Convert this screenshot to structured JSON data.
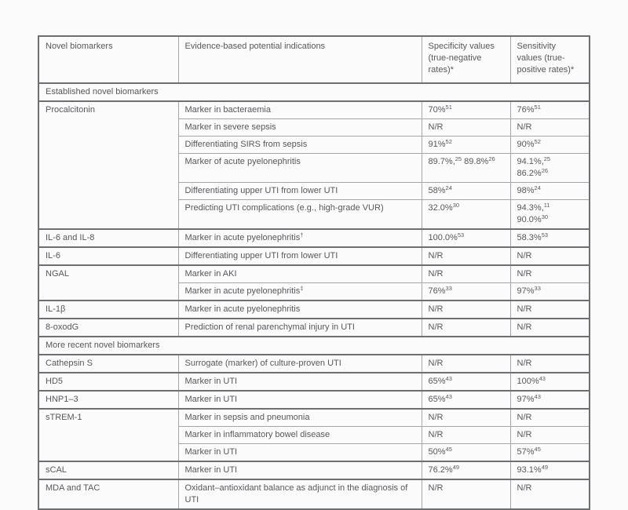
{
  "table": {
    "h": [
      "Novel biomarkers",
      "Evidence-based potential indications",
      "Specificity values (true-negative rates)*",
      "Sensitivity values (true-positive rates)*"
    ],
    "sec1": "Established novel biomarkers",
    "sec2": "More recent novel biomarkers",
    "g": [
      {
        "name": "Procalcitonin",
        "rows": [
          {
            "ind": [
              {
                "t": "Marker in bacteraemia"
              }
            ],
            "spec": [
              {
                "t": "70%",
                "s": "51"
              }
            ],
            "sens": [
              {
                "t": "76%",
                "s": "51"
              }
            ]
          },
          {
            "ind": [
              {
                "t": "Marker in severe sepsis"
              }
            ],
            "spec": [
              {
                "t": "N/R"
              }
            ],
            "sens": [
              {
                "t": "N/R"
              }
            ]
          },
          {
            "ind": [
              {
                "t": "Differentiating SIRS from sepsis"
              }
            ],
            "spec": [
              {
                "t": "91%",
                "s": "52"
              }
            ],
            "sens": [
              {
                "t": "90%",
                "s": "52"
              }
            ]
          },
          {
            "ind": [
              {
                "t": "Marker of acute pyelonephritis"
              }
            ],
            "spec": [
              {
                "t": "89.7%,",
                "s": "25"
              },
              {
                "t": " 89.8%",
                "s": "26"
              }
            ],
            "sens": [
              {
                "t": "94.1%,",
                "s": "25"
              },
              {
                "t": " 86.2%",
                "s": "26"
              }
            ]
          },
          {
            "ind": [
              {
                "t": "Differentiating upper UTI from lower UTI"
              }
            ],
            "spec": [
              {
                "t": "58%",
                "s": "24"
              }
            ],
            "sens": [
              {
                "t": "98%",
                "s": "24"
              }
            ]
          },
          {
            "ind": [
              {
                "t": "Predicting UTI complications (e.g., high-grade VUR)"
              }
            ],
            "spec": [
              {
                "t": "32.0%",
                "s": "30"
              }
            ],
            "sens": [
              {
                "t": "94.3%,",
                "s": "11"
              },
              {
                "t": " 90.0%",
                "s": "30"
              }
            ]
          }
        ]
      },
      {
        "name": "IL-6 and IL-8",
        "rows": [
          {
            "ind": [
              {
                "t": "Marker in acute pyelonephritis",
                "s": "†"
              }
            ],
            "spec": [
              {
                "t": "100.0%",
                "s": "53"
              }
            ],
            "sens": [
              {
                "t": "58.3%",
                "s": "53"
              }
            ]
          }
        ]
      },
      {
        "name": "IL-6",
        "rows": [
          {
            "ind": [
              {
                "t": "Differentiating upper UTI from lower UTI"
              }
            ],
            "spec": [
              {
                "t": "N/R"
              }
            ],
            "sens": [
              {
                "t": "N/R"
              }
            ]
          }
        ]
      },
      {
        "name": "NGAL",
        "rows": [
          {
            "ind": [
              {
                "t": "Marker in AKI"
              }
            ],
            "spec": [
              {
                "t": "N/R"
              }
            ],
            "sens": [
              {
                "t": "N/R"
              }
            ]
          },
          {
            "ind": [
              {
                "t": "Marker in acute pyelonephritis",
                "s": "‡"
              }
            ],
            "spec": [
              {
                "t": "76%",
                "s": "33"
              }
            ],
            "sens": [
              {
                "t": "97%",
                "s": "33"
              }
            ]
          }
        ]
      },
      {
        "name": "IL-1β",
        "rows": [
          {
            "ind": [
              {
                "t": "Marker in acute pyelonephritis"
              }
            ],
            "spec": [
              {
                "t": "N/R"
              }
            ],
            "sens": [
              {
                "t": "N/R"
              }
            ]
          }
        ]
      },
      {
        "name": "8-oxodG",
        "rows": [
          {
            "ind": [
              {
                "t": "Prediction of renal parenchymal injury in UTI"
              }
            ],
            "spec": [
              {
                "t": "N/R"
              }
            ],
            "sens": [
              {
                "t": "N/R"
              }
            ]
          }
        ]
      },
      {
        "name": "Cathepsin S",
        "rows": [
          {
            "ind": [
              {
                "t": "Surrogate (marker) of culture-proven UTI"
              }
            ],
            "spec": [
              {
                "t": "N/R"
              }
            ],
            "sens": [
              {
                "t": "N/R"
              }
            ]
          }
        ]
      },
      {
        "name": "HD5",
        "rows": [
          {
            "ind": [
              {
                "t": "Marker in UTI"
              }
            ],
            "spec": [
              {
                "t": "65%",
                "s": "43"
              }
            ],
            "sens": [
              {
                "t": "100%",
                "s": "43"
              }
            ]
          }
        ]
      },
      {
        "name": "HNP1–3",
        "rows": [
          {
            "ind": [
              {
                "t": "Marker in UTI"
              }
            ],
            "spec": [
              {
                "t": "65%",
                "s": "43"
              }
            ],
            "sens": [
              {
                "t": "97%",
                "s": "43"
              }
            ]
          }
        ]
      },
      {
        "name": "sTREM-1",
        "rows": [
          {
            "ind": [
              {
                "t": "Marker in sepsis and pneumonia"
              }
            ],
            "spec": [
              {
                "t": "N/R"
              }
            ],
            "sens": [
              {
                "t": "N/R"
              }
            ]
          },
          {
            "ind": [
              {
                "t": "Marker in inflammatory bowel disease"
              }
            ],
            "spec": [
              {
                "t": "N/R"
              }
            ],
            "sens": [
              {
                "t": "N/R"
              }
            ]
          },
          {
            "ind": [
              {
                "t": "Marker in UTI"
              }
            ],
            "spec": [
              {
                "t": "50%",
                "s": "45"
              }
            ],
            "sens": [
              {
                "t": "57%",
                "s": "45"
              }
            ]
          }
        ]
      },
      {
        "name": "sCAL",
        "rows": [
          {
            "ind": [
              {
                "t": "Marker in UTI"
              }
            ],
            "spec": [
              {
                "t": "76.2%",
                "s": "49"
              }
            ],
            "sens": [
              {
                "t": "93.1%",
                "s": "49"
              }
            ]
          }
        ]
      },
      {
        "name": "MDA and TAC",
        "rows": [
          {
            "ind": [
              {
                "t": "Oxidant–antioxidant balance as adjunct in the diagnosis of UTI"
              }
            ],
            "spec": [
              {
                "t": "N/R"
              }
            ],
            "sens": [
              {
                "t": "N/R"
              }
            ]
          }
        ]
      }
    ],
    "colors": {
      "text": "#57585b",
      "border_dark": "#6e6f72",
      "border_light": "#a4a6a9",
      "background": "#fbfbfb"
    }
  }
}
